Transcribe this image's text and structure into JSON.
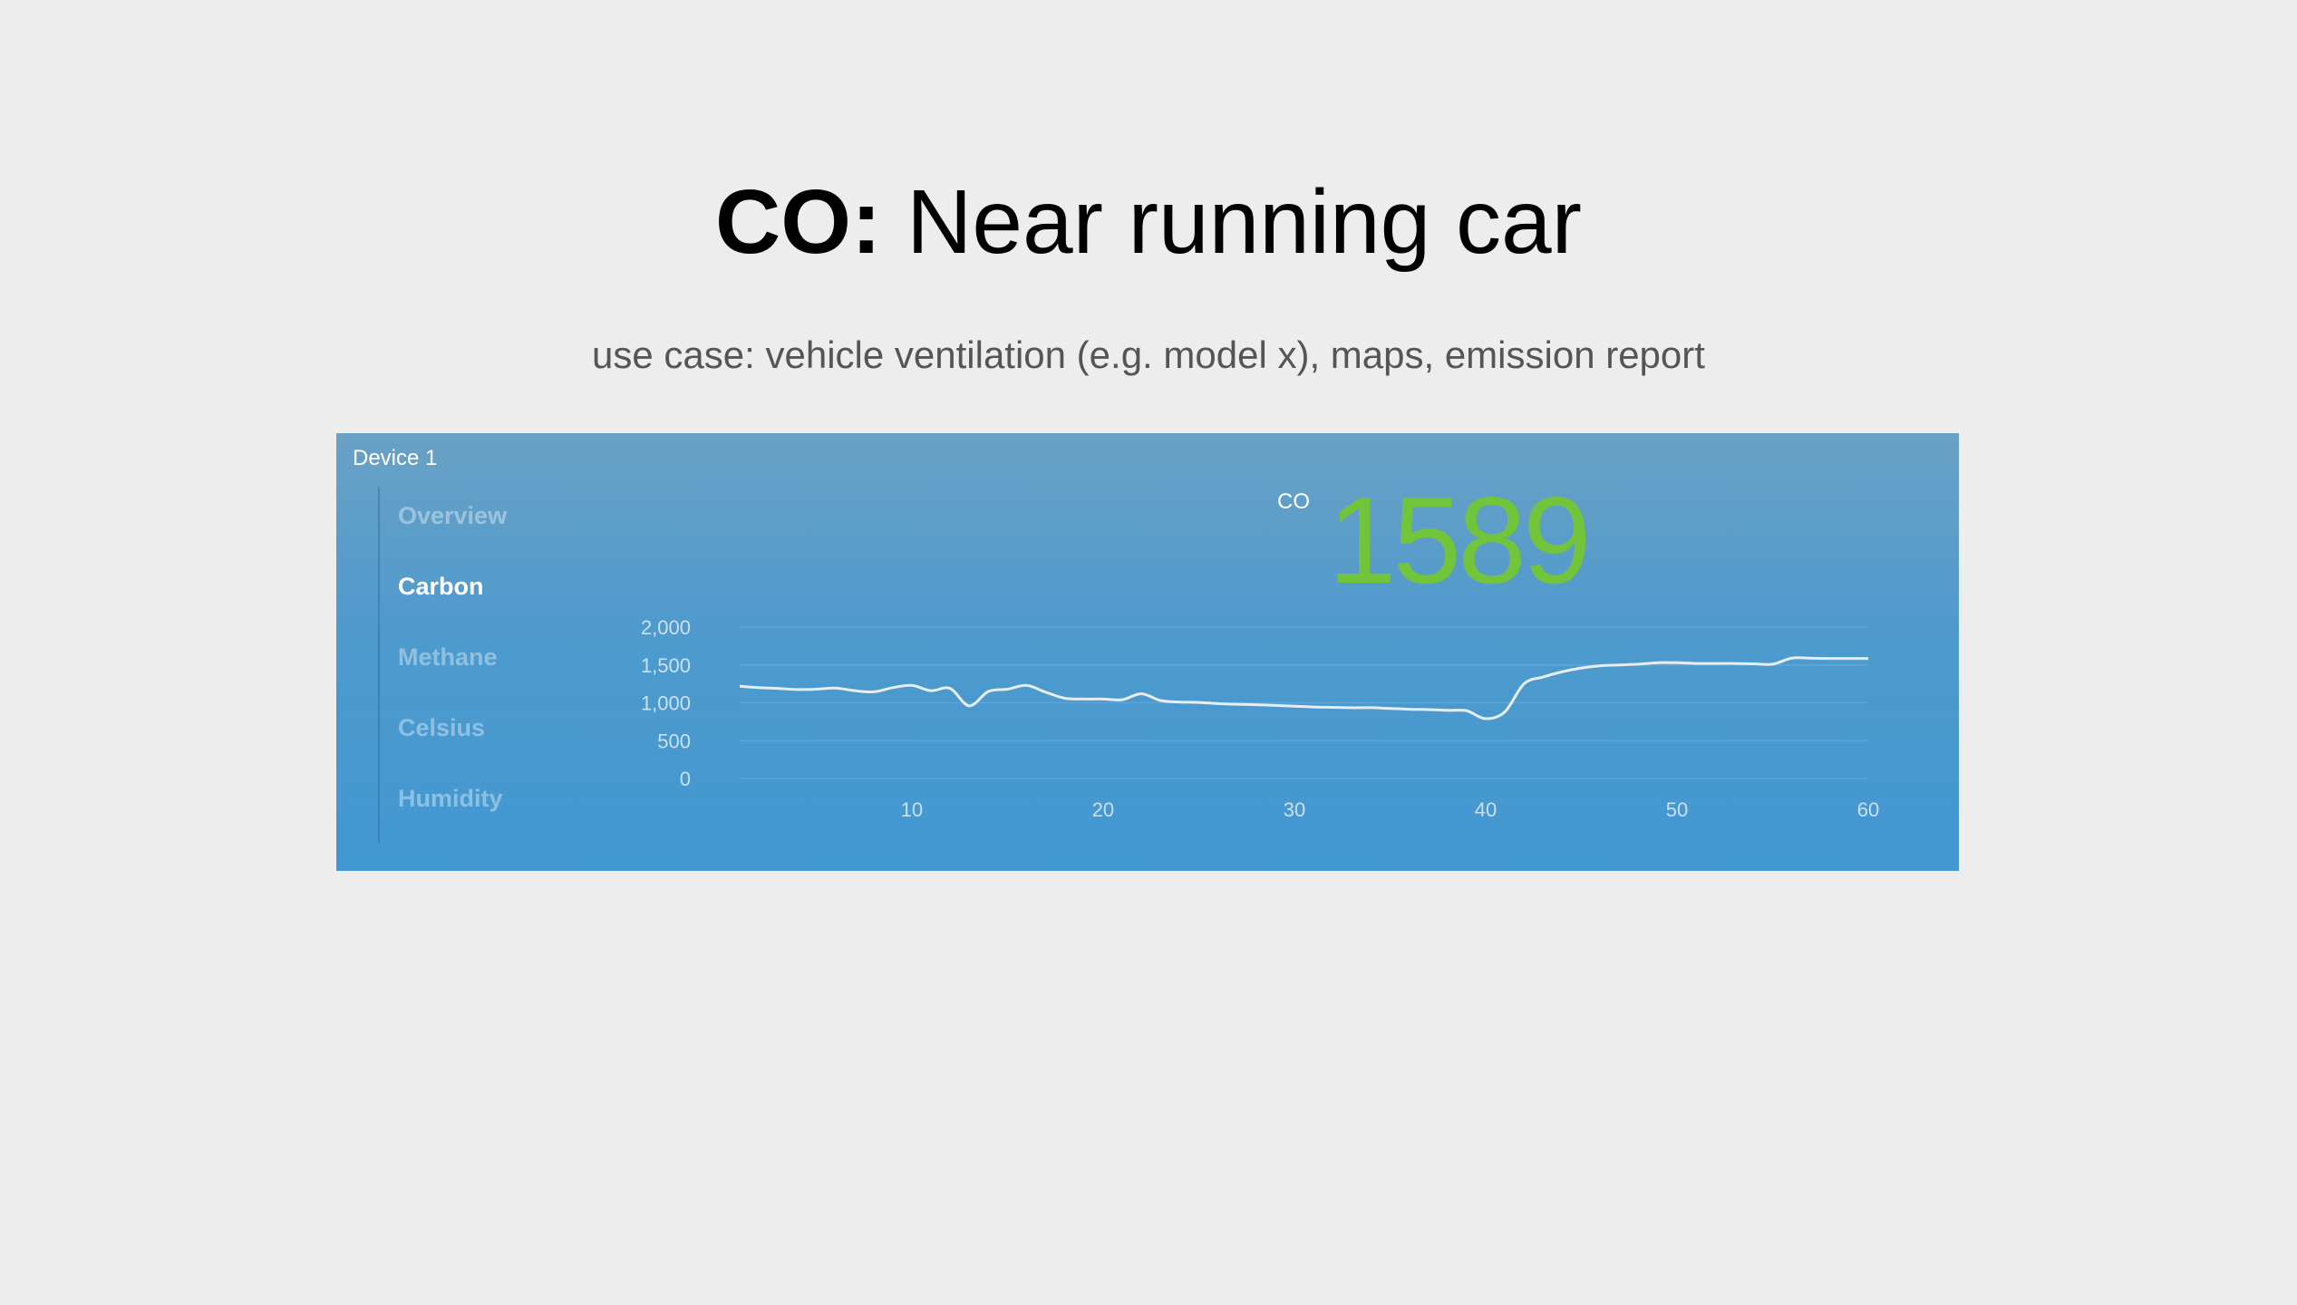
{
  "slide": {
    "title_bold": "CO:",
    "title_rest": " Near running car",
    "subtitle": "use case: vehicle ventilation (e.g. model x), maps, emission report"
  },
  "panel": {
    "device_label": "Device 1",
    "nav": [
      {
        "label": "Overview",
        "active": false
      },
      {
        "label": "Carbon",
        "active": true
      },
      {
        "label": "Methane",
        "active": false
      },
      {
        "label": "Celsius",
        "active": false
      },
      {
        "label": "Humidity",
        "active": false
      }
    ],
    "reading": {
      "label": "CO",
      "value": "1589"
    }
  },
  "colors": {
    "reading": "#72c43a",
    "line": "#e6edf3"
  },
  "chart_data": {
    "type": "line",
    "title": "",
    "xlabel": "",
    "ylabel": "",
    "xlim": [
      1,
      60
    ],
    "ylim": [
      0,
      2000
    ],
    "yticks": [
      0,
      500,
      1000,
      1500,
      2000
    ],
    "ytick_labels": [
      "0",
      "500",
      "1,000",
      "1,500",
      "2,000"
    ],
    "xticks": [
      10,
      20,
      30,
      40,
      50,
      60
    ],
    "xtick_labels": [
      "10",
      "20",
      "30",
      "40",
      "50",
      "60"
    ],
    "grid": true,
    "legend": "none",
    "series": [
      {
        "x": [
          1,
          2,
          3,
          4,
          5,
          6,
          7,
          8,
          9,
          10,
          11,
          12,
          13,
          14,
          15,
          16,
          17,
          18,
          19,
          20,
          21,
          22,
          23,
          24,
          25,
          26,
          27,
          28,
          29,
          30,
          31,
          32,
          33,
          34,
          35,
          36,
          37,
          38,
          39,
          40,
          41,
          42,
          43,
          44,
          45,
          46,
          47,
          48,
          49,
          50,
          51,
          52,
          53,
          54,
          55,
          56,
          57,
          58,
          59,
          60
        ],
        "y": [
          1220,
          1200,
          1190,
          1175,
          1180,
          1195,
          1160,
          1145,
          1200,
          1230,
          1160,
          1190,
          960,
          1150,
          1180,
          1230,
          1140,
          1060,
          1050,
          1050,
          1040,
          1120,
          1030,
          1010,
          1005,
          990,
          980,
          975,
          965,
          955,
          945,
          940,
          935,
          935,
          925,
          915,
          910,
          900,
          895,
          790,
          880,
          1250,
          1340,
          1410,
          1460,
          1490,
          1500,
          1510,
          1530,
          1530,
          1520,
          1520,
          1520,
          1515,
          1510,
          1590,
          1590,
          1585,
          1585,
          1585
        ]
      }
    ]
  }
}
